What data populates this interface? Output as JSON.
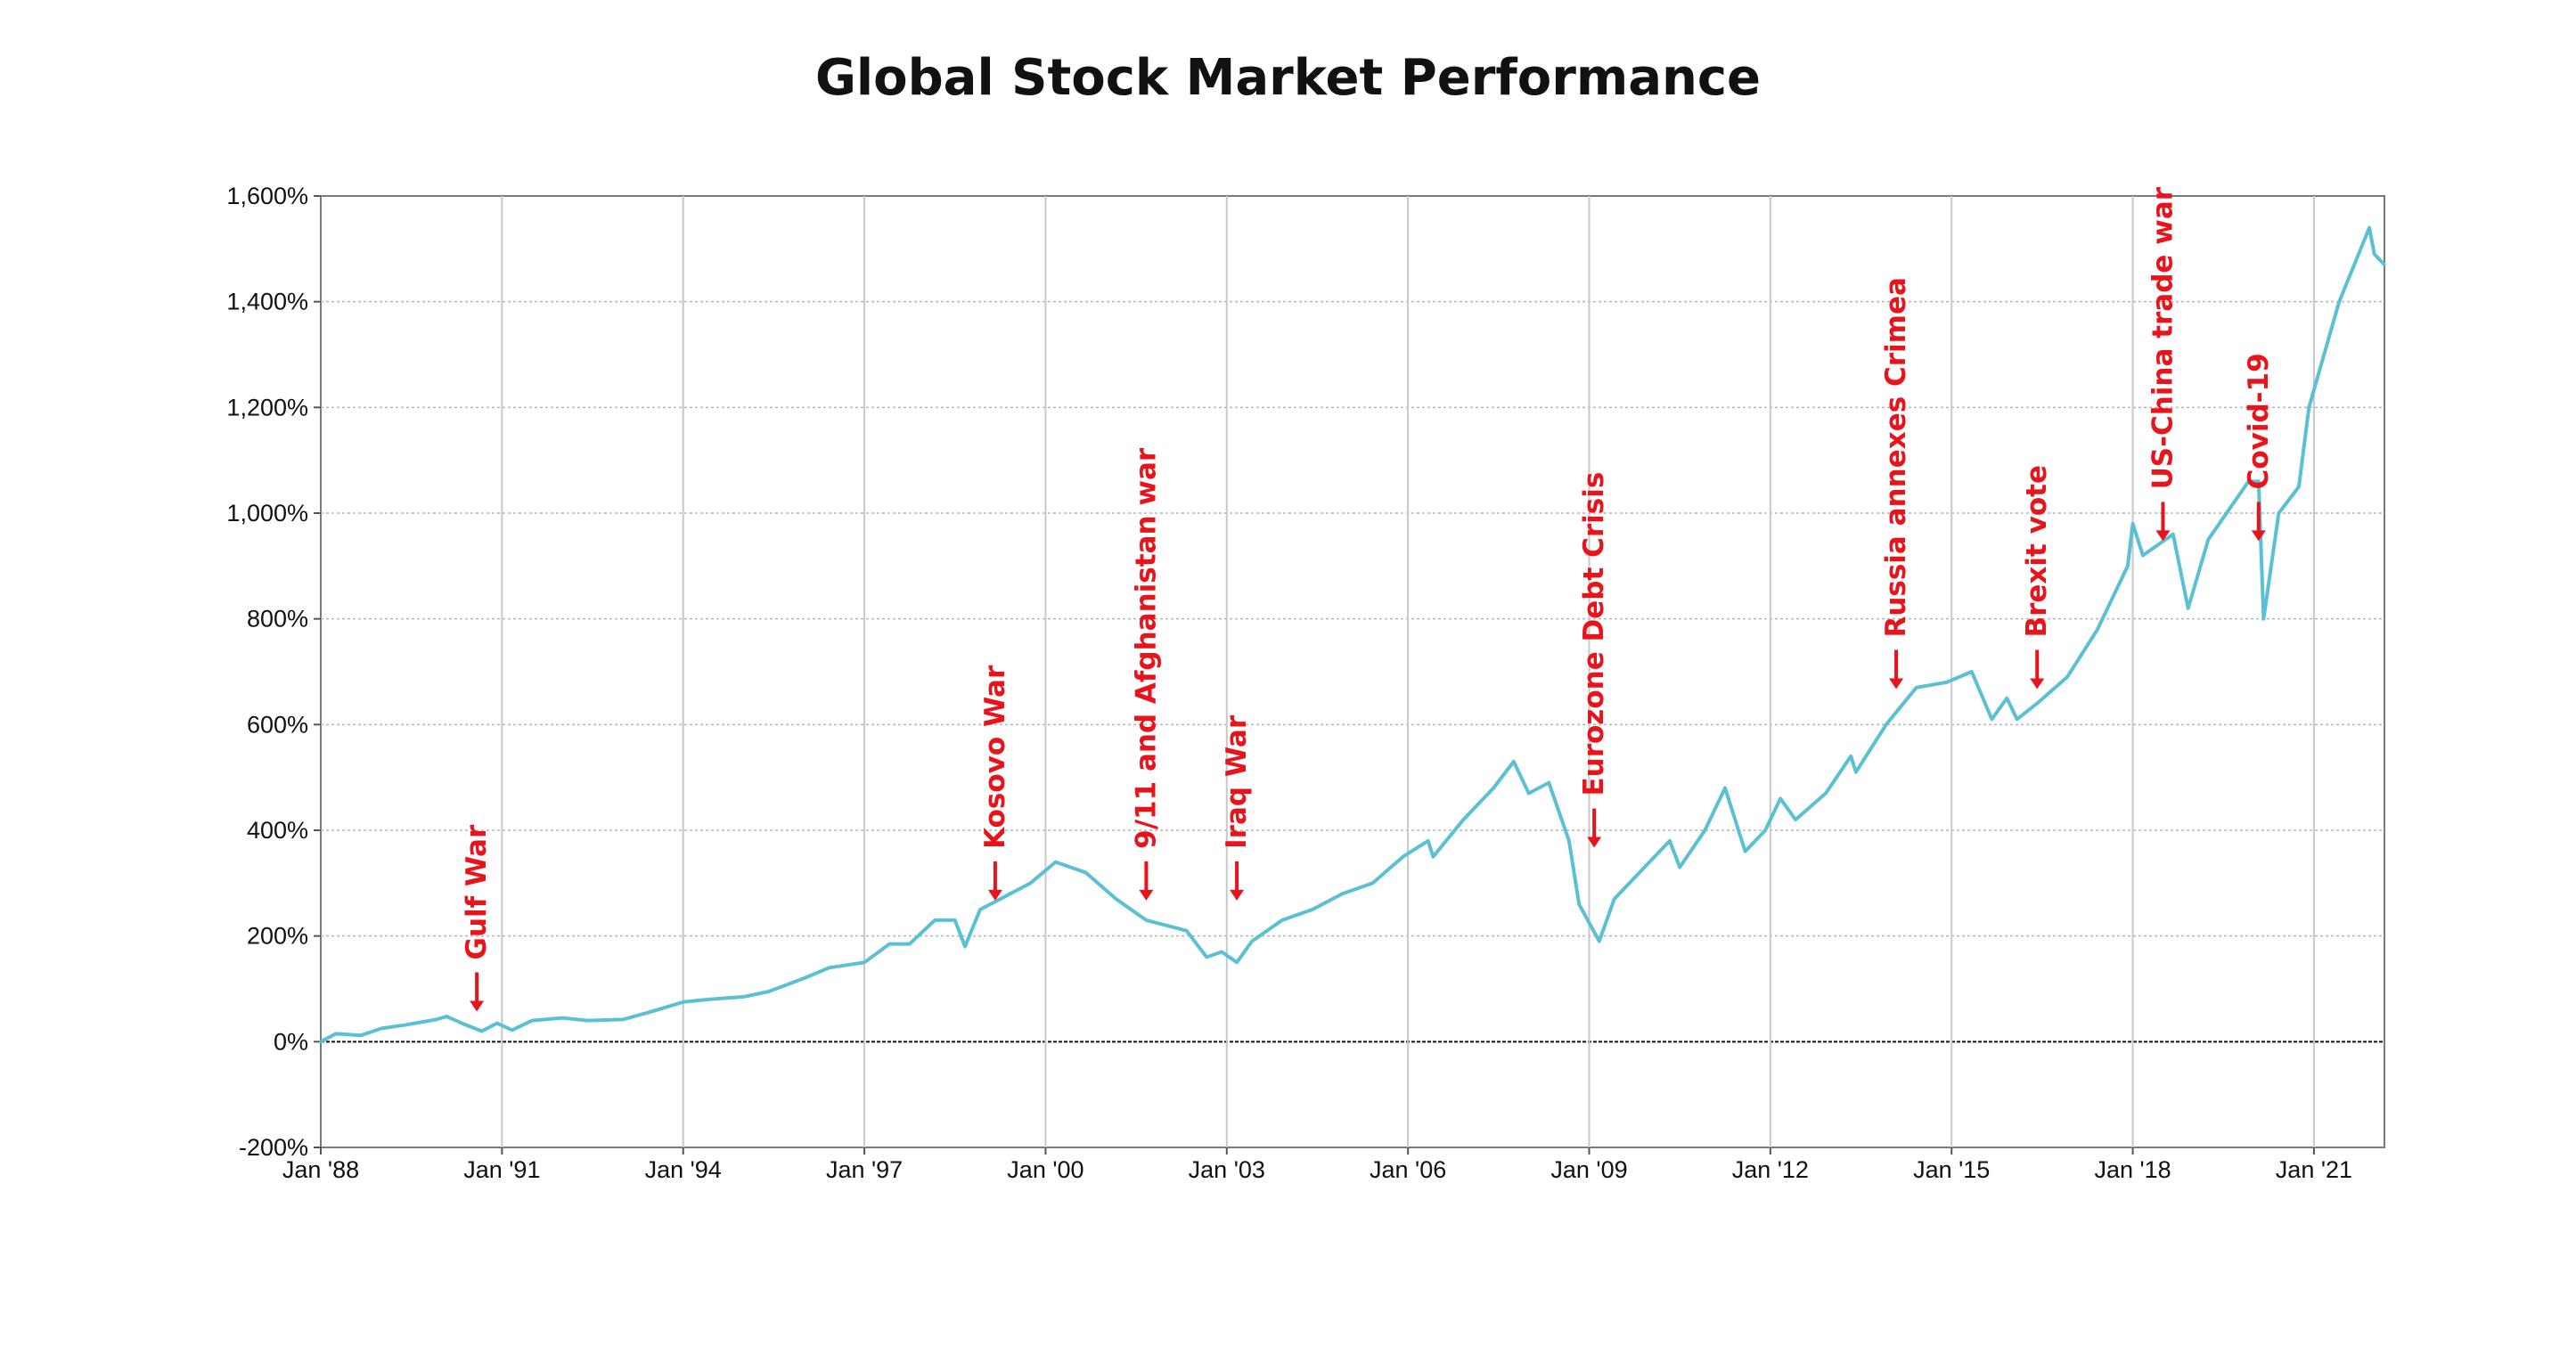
{
  "chart_data": {
    "type": "line",
    "title": "Global Stock Market Performance",
    "xlabel": "",
    "ylabel": "",
    "ylim": [
      -200,
      1600
    ],
    "xlim": [
      "1988-01",
      "2022-03"
    ],
    "y_ticks": [
      -200,
      0,
      200,
      400,
      600,
      800,
      1000,
      1200,
      1400,
      1600
    ],
    "y_tick_labels": [
      "-200%",
      "0%",
      "200%",
      "400%",
      "600%",
      "800%",
      "1,000%",
      "1,200%",
      "1,400%",
      "1,600%"
    ],
    "x_ticks": [
      "1988-01",
      "1991-01",
      "1994-01",
      "1997-01",
      "2000-01",
      "2003-01",
      "2006-01",
      "2009-01",
      "2012-01",
      "2015-01",
      "2018-01",
      "2021-01"
    ],
    "x_tick_labels": [
      "Jan '88",
      "Jan '91",
      "Jan '94",
      "Jan '97",
      "Jan '00",
      "Jan '03",
      "Jan '06",
      "Jan '09",
      "Jan '12",
      "Jan '15",
      "Jan '18",
      "Jan '21"
    ],
    "grid": true,
    "legend": "none",
    "colors": {
      "line": "#5bc0d3",
      "annotation": "#e8141c",
      "grid": "#b5b5b5",
      "zero_line": "#111111"
    },
    "series": [
      {
        "values": [
          [
            "1988-01",
            0
          ],
          [
            "1988-04",
            15
          ],
          [
            "1988-09",
            12
          ],
          [
            "1989-01",
            25
          ],
          [
            "1989-06",
            32
          ],
          [
            "1989-12",
            42
          ],
          [
            "1990-02",
            48
          ],
          [
            "1990-05",
            35
          ],
          [
            "1990-09",
            20
          ],
          [
            "1990-12",
            35
          ],
          [
            "1991-03",
            22
          ],
          [
            "1991-07",
            40
          ],
          [
            "1992-01",
            45
          ],
          [
            "1992-06",
            40
          ],
          [
            "1993-01",
            42
          ],
          [
            "1993-06",
            55
          ],
          [
            "1994-01",
            75
          ],
          [
            "1994-06",
            80
          ],
          [
            "1995-01",
            85
          ],
          [
            "1995-06",
            95
          ],
          [
            "1996-01",
            120
          ],
          [
            "1996-06",
            140
          ],
          [
            "1997-01",
            150
          ],
          [
            "1997-06",
            185
          ],
          [
            "1997-10",
            185
          ],
          [
            "1998-03",
            230
          ],
          [
            "1998-07",
            230
          ],
          [
            "1998-09",
            180
          ],
          [
            "1998-12",
            250
          ],
          [
            "1999-06",
            280
          ],
          [
            "1999-10",
            300
          ],
          [
            "2000-03",
            340
          ],
          [
            "2000-09",
            320
          ],
          [
            "2001-03",
            270
          ],
          [
            "2001-09",
            230
          ],
          [
            "2002-01",
            220
          ],
          [
            "2002-05",
            210
          ],
          [
            "2002-09",
            160
          ],
          [
            "2002-12",
            170
          ],
          [
            "2003-03",
            150
          ],
          [
            "2003-06",
            190
          ],
          [
            "2003-12",
            230
          ],
          [
            "2004-06",
            250
          ],
          [
            "2004-12",
            280
          ],
          [
            "2005-06",
            300
          ],
          [
            "2005-12",
            350
          ],
          [
            "2006-05",
            380
          ],
          [
            "2006-06",
            350
          ],
          [
            "2006-12",
            420
          ],
          [
            "2007-06",
            480
          ],
          [
            "2007-10",
            530
          ],
          [
            "2008-01",
            470
          ],
          [
            "2008-05",
            490
          ],
          [
            "2008-09",
            380
          ],
          [
            "2008-11",
            260
          ],
          [
            "2009-03",
            190
          ],
          [
            "2009-06",
            270
          ],
          [
            "2009-12",
            330
          ],
          [
            "2010-05",
            380
          ],
          [
            "2010-07",
            330
          ],
          [
            "2010-12",
            400
          ],
          [
            "2011-04",
            480
          ],
          [
            "2011-08",
            360
          ],
          [
            "2011-12",
            400
          ],
          [
            "2012-03",
            460
          ],
          [
            "2012-06",
            420
          ],
          [
            "2012-12",
            470
          ],
          [
            "2013-05",
            540
          ],
          [
            "2013-06",
            510
          ],
          [
            "2013-12",
            600
          ],
          [
            "2014-06",
            670
          ],
          [
            "2014-12",
            680
          ],
          [
            "2015-05",
            700
          ],
          [
            "2015-09",
            610
          ],
          [
            "2015-12",
            650
          ],
          [
            "2016-02",
            610
          ],
          [
            "2016-06",
            640
          ],
          [
            "2016-12",
            690
          ],
          [
            "2017-06",
            780
          ],
          [
            "2017-12",
            900
          ],
          [
            "2018-01",
            980
          ],
          [
            "2018-03",
            920
          ],
          [
            "2018-09",
            960
          ],
          [
            "2018-12",
            820
          ],
          [
            "2019-04",
            950
          ],
          [
            "2019-12",
            1060
          ],
          [
            "2020-02",
            1060
          ],
          [
            "2020-03",
            800
          ],
          [
            "2020-06",
            1000
          ],
          [
            "2020-10",
            1050
          ],
          [
            "2020-12",
            1200
          ],
          [
            "2021-06",
            1400
          ],
          [
            "2021-12",
            1540
          ],
          [
            "2022-01",
            1490
          ],
          [
            "2022-03",
            1470
          ]
        ]
      }
    ],
    "annotations": [
      {
        "label": "Gulf War",
        "x": "1990-08",
        "y": 20
      },
      {
        "label": "Kosovo War",
        "x": "1999-03",
        "y": 230
      },
      {
        "label": "9/11 and Afghanistan war",
        "x": "2001-09",
        "y": 230
      },
      {
        "label": "Iraq War",
        "x": "2003-03",
        "y": 230
      },
      {
        "label": "Eurozone Debt Crisis",
        "x": "2009-02",
        "y": 330
      },
      {
        "label": "Russia annexes Crimea",
        "x": "2014-02",
        "y": 630
      },
      {
        "label": "Brexit vote",
        "x": "2016-06",
        "y": 630
      },
      {
        "label": "US-China trade war",
        "x": "2018-07",
        "y": 910
      },
      {
        "label": "Covid-19",
        "x": "2020-02",
        "y": 910
      }
    ]
  }
}
